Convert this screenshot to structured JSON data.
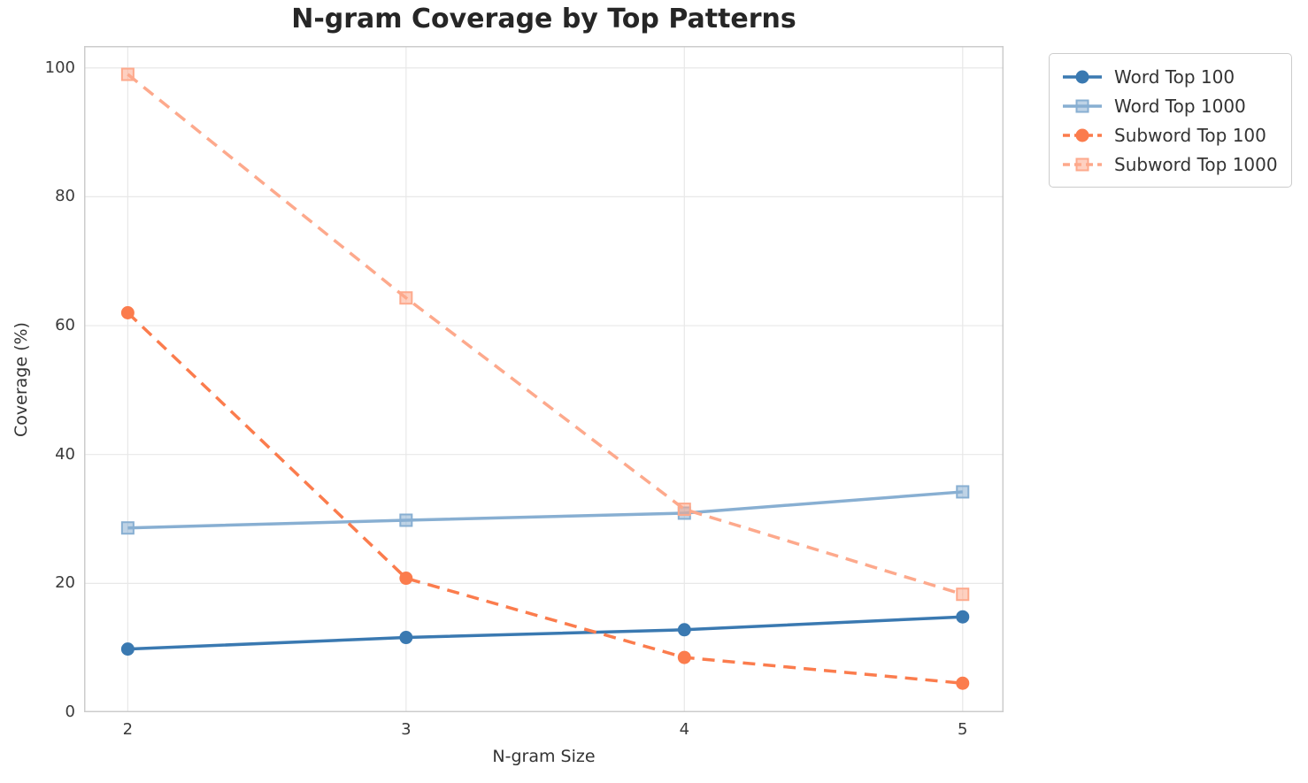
{
  "chart_data": {
    "type": "line",
    "title": "N-gram Coverage by Top Patterns",
    "xlabel": "N-gram Size",
    "ylabel": "Coverage (%)",
    "x": [
      2,
      3,
      4,
      5
    ],
    "xticks": [
      "2",
      "3",
      "4",
      "5"
    ],
    "yticks": [
      0,
      20,
      40,
      60,
      80,
      100
    ],
    "xlim": [
      1.843,
      5.147
    ],
    "ylim": [
      0,
      103.4
    ],
    "grid": true,
    "grid_color": "#e8e8e8",
    "spine_color": "#cccccc",
    "legend_position": "outside-upper-right",
    "series": [
      {
        "name": "Word Top 100",
        "values": [
          9.8,
          11.6,
          12.8,
          14.8
        ],
        "color": "#3a79b1",
        "marker": "circle",
        "line": "solid"
      },
      {
        "name": "Word Top 1000",
        "values": [
          28.6,
          29.8,
          30.9,
          34.2
        ],
        "color": "#88afd2",
        "marker": "square",
        "line": "solid"
      },
      {
        "name": "Subword Top 100",
        "values": [
          62.0,
          20.8,
          8.5,
          4.5
        ],
        "color": "#fb7c4d",
        "marker": "circle",
        "line": "dashed"
      },
      {
        "name": "Subword Top 1000",
        "values": [
          99.0,
          64.3,
          31.5,
          18.3
        ],
        "color": "#fda98c",
        "marker": "square",
        "line": "dashed"
      }
    ]
  }
}
